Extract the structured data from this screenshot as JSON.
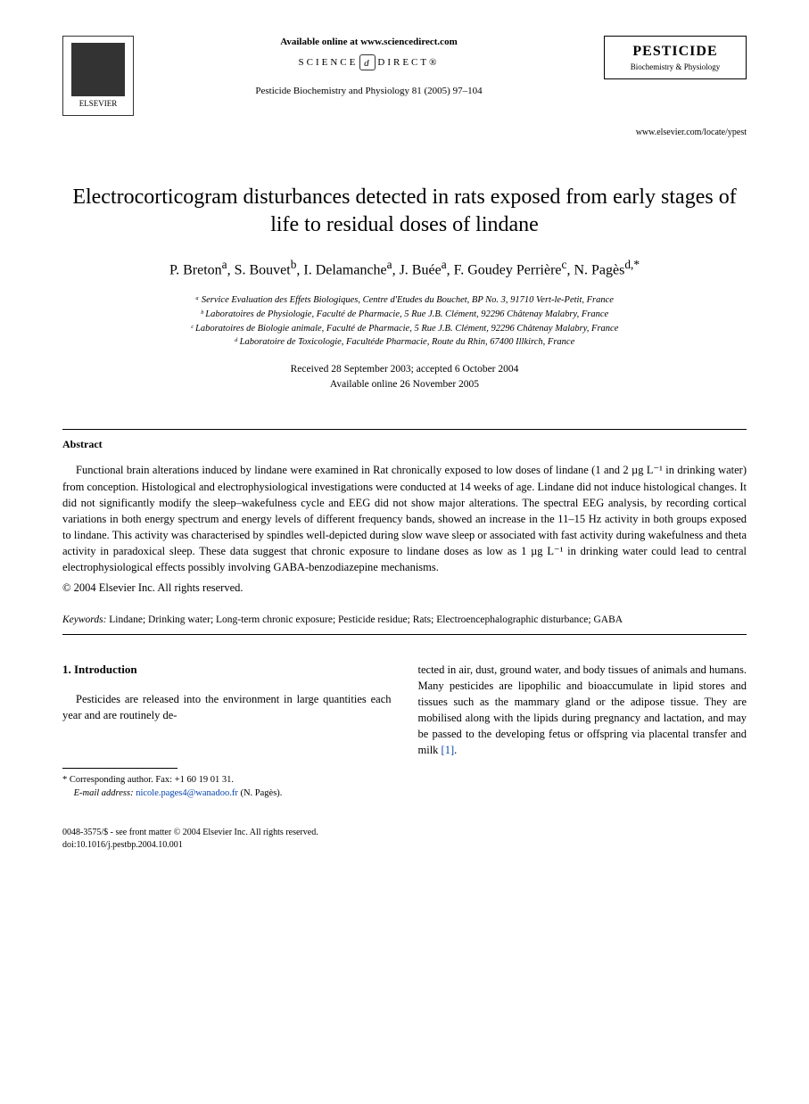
{
  "header": {
    "publisher": "ELSEVIER",
    "available_online": "Available online at www.sciencedirect.com",
    "science_direct_left": "SCIENCE",
    "science_direct_right": "DIRECT®",
    "journal_ref": "Pesticide Biochemistry and Physiology 81 (2005) 97–104",
    "journal_name": "PESTICIDE",
    "journal_subtitle": "Biochemistry & Physiology",
    "journal_url": "www.elsevier.com/locate/ypest"
  },
  "title": "Electrocorticogram disturbances detected in rats exposed from early stages of life to residual doses of lindane",
  "authors_html": "P. Breton<sup>a</sup>, S. Bouvet<sup>b</sup>, I. Delamanche<sup>a</sup>, J. Buée<sup>a</sup>, F. Goudey Perrière<sup>c</sup>, N. Pagès<sup>d,*</sup>",
  "affiliations": [
    "ᵃ Service Evaluation des Effets Biologiques, Centre d'Etudes du Bouchet, BP No. 3, 91710 Vert-le-Petit, France",
    "ᵇ Laboratoires de Physiologie, Faculté de Pharmacie, 5 Rue J.B. Clément, 92296 Châtenay Malabry, France",
    "ᶜ Laboratoires de Biologie animale, Faculté de Pharmacie, 5 Rue J.B. Clément, 92296 Châtenay Malabry, France",
    "ᵈ Laboratoire de Toxicologie, Facultéde Pharmacie, Route du Rhin, 67400 Illkirch, France"
  ],
  "dates": {
    "received_accepted": "Received 28 September 2003; accepted 6 October 2004",
    "available": "Available online 26 November 2005"
  },
  "abstract": {
    "heading": "Abstract",
    "text": "Functional brain alterations induced by lindane were examined in Rat chronically exposed to low doses of lindane (1 and 2 µg L⁻¹ in drinking water) from conception. Histological and electrophysiological investigations were conducted at 14 weeks of age. Lindane did not induce histological changes. It did not significantly modify the sleep–wakefulness cycle and EEG did not show major alterations. The spectral EEG analysis, by recording cortical variations in both energy spectrum and energy levels of different frequency bands, showed an increase in the 11–15 Hz activity in both groups exposed to lindane. This activity was characterised by spindles well-depicted during slow wave sleep or associated with fast activity during wakefulness and theta activity in paradoxical sleep. These data suggest that chronic exposure to lindane doses as low as 1 µg L⁻¹ in drinking water could lead to central electrophysiological effects possibly involving GABA-benzodiazepine mechanisms.",
    "copyright": "© 2004 Elsevier Inc. All rights reserved."
  },
  "keywords": {
    "label": "Keywords:",
    "text": " Lindane; Drinking water; Long-term chronic exposure; Pesticide residue; Rats; Electroencephalographic disturbance; GABA"
  },
  "introduction": {
    "heading": "1. Introduction",
    "col1": "Pesticides are released into the environment in large quantities each year and are routinely de-",
    "col2": "tected in air, dust, ground water, and body tissues of animals and humans. Many pesticides are lipophilic and bioaccumulate in lipid stores and tissues such as the mammary gland or the adipose tissue. They are mobilised along with the lipids during pregnancy and lactation, and may be passed to the developing fetus or offspring via placental transfer and milk ",
    "col2_ref": "[1]",
    "col2_end": "."
  },
  "footnote": {
    "corresponding": "* Corresponding author. Fax: +1 60 19 01 31.",
    "email_label": "E-mail address:",
    "email": "nicole.pages4@wanadoo.fr",
    "email_suffix": " (N. Pagès)."
  },
  "footer": {
    "line1": "0048-3575/$ - see front matter © 2004 Elsevier Inc. All rights reserved.",
    "line2": "doi:10.1016/j.pestbp.2004.10.001"
  },
  "colors": {
    "text": "#000000",
    "background": "#ffffff",
    "link": "#0645ad"
  }
}
